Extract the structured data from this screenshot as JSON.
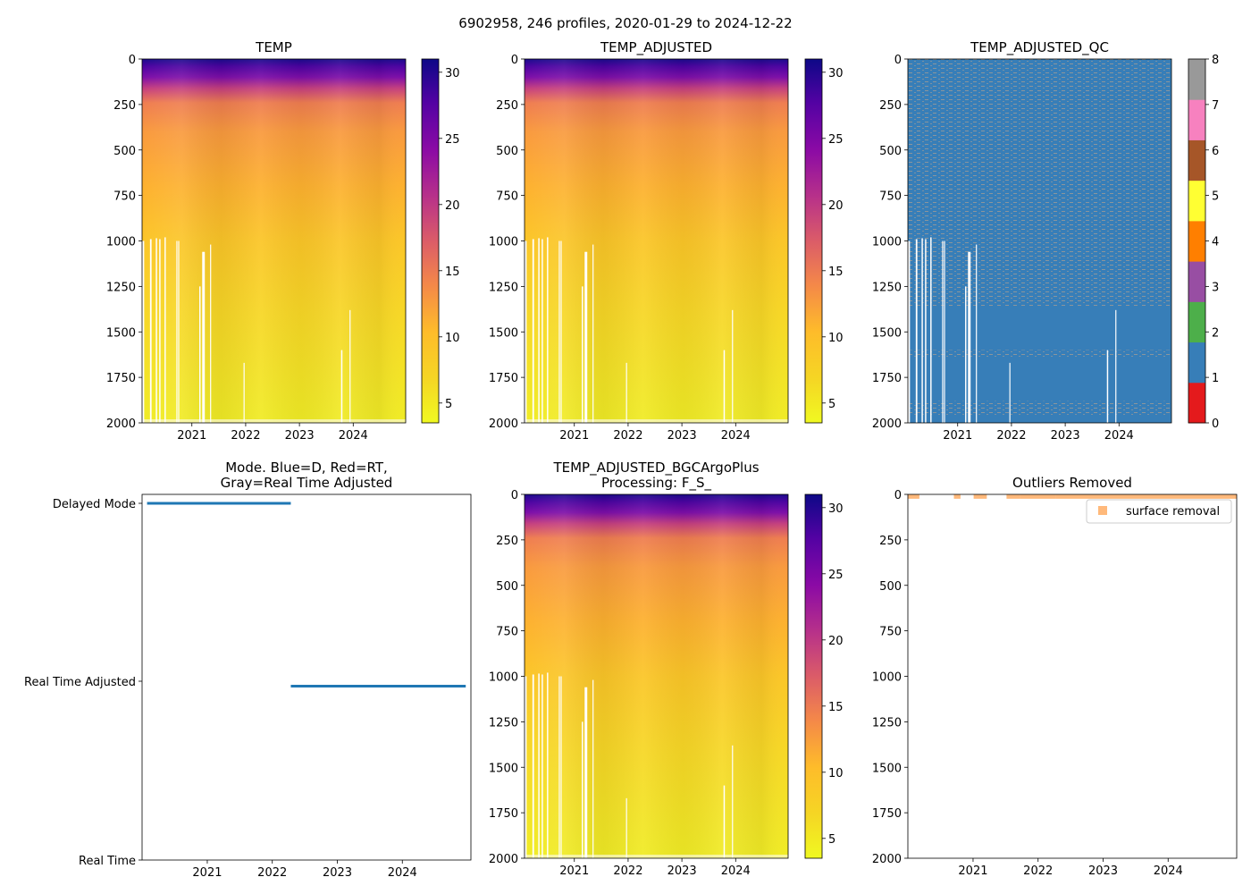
{
  "figure_title": "6902958, 246 profiles, 2020-01-29 to 2024-12-22",
  "colors": {
    "mode_blue": "#1f77b4",
    "outlier_orange": "#ff7f0e",
    "missing": "#ffffff",
    "qc_values": [
      "#e41a1c",
      "#377eb8",
      "#4daf4a",
      "#984ea3",
      "#ff7f00",
      "#ffff33",
      "#a65628",
      "#f781bf",
      "#999999"
    ]
  },
  "chart_data": [
    {
      "id": "temp",
      "type": "heatmap",
      "title": "TEMP",
      "x_ticks": [
        "2021",
        "2022",
        "2023",
        "2024"
      ],
      "y_ticks": [
        "0",
        "250",
        "500",
        "750",
        "1000",
        "1250",
        "1500",
        "1750",
        "2000"
      ],
      "ylim": [
        2000,
        0
      ],
      "colormap": "plasma_r",
      "colorbar": {
        "range": [
          3.5,
          31
        ],
        "ticks": [
          "5",
          "10",
          "15",
          "20",
          "25",
          "30"
        ]
      }
    },
    {
      "id": "temp_adjusted",
      "type": "heatmap",
      "title": "TEMP_ADJUSTED",
      "x_ticks": [
        "2021",
        "2022",
        "2023",
        "2024"
      ],
      "y_ticks": [
        "0",
        "250",
        "500",
        "750",
        "1000",
        "1250",
        "1500",
        "1750",
        "2000"
      ],
      "ylim": [
        2000,
        0
      ],
      "colormap": "plasma_r",
      "colorbar": {
        "range": [
          3.5,
          31
        ],
        "ticks": [
          "5",
          "10",
          "15",
          "20",
          "25",
          "30"
        ]
      }
    },
    {
      "id": "temp_adjusted_qc",
      "type": "heatmap",
      "title": "TEMP_ADJUSTED_QC",
      "x_ticks": [
        "2021",
        "2022",
        "2023",
        "2024"
      ],
      "y_ticks": [
        "0",
        "250",
        "500",
        "750",
        "1000",
        "1250",
        "1500",
        "1750",
        "2000"
      ],
      "ylim": [
        2000,
        0
      ],
      "dominant_flag": 1,
      "secondary_flag": 8,
      "colorbar": {
        "range": [
          0,
          8
        ],
        "ticks": [
          "0",
          "1",
          "2",
          "3",
          "4",
          "5",
          "6",
          "7",
          "8"
        ]
      }
    },
    {
      "id": "mode",
      "type": "scatter",
      "title_lines": [
        "Mode. Blue=D, Red=RT,",
        "Gray=Real Time Adjusted"
      ],
      "x_ticks": [
        "2021",
        "2022",
        "2023",
        "2024"
      ],
      "y_ticks": [
        "Delayed Mode",
        "Real Time Adjusted",
        "Real Time"
      ],
      "series": [
        {
          "name": "Delayed Mode",
          "x_range": [
            "2020-01-29",
            "2022-04-15"
          ]
        },
        {
          "name": "Real Time Adjusted",
          "x_range": [
            "2022-04-15",
            "2024-12-22"
          ]
        }
      ]
    },
    {
      "id": "temp_adjusted_bgcargoplus",
      "type": "heatmap",
      "title_lines": [
        "TEMP_ADJUSTED_BGCArgoPlus",
        "Processing: F_S_"
      ],
      "x_ticks": [
        "2021",
        "2022",
        "2023",
        "2024"
      ],
      "y_ticks": [
        "0",
        "250",
        "500",
        "750",
        "1000",
        "1250",
        "1500",
        "1750",
        "2000"
      ],
      "ylim": [
        2000,
        0
      ],
      "colormap": "plasma_r",
      "colorbar": {
        "range": [
          3.5,
          31
        ],
        "ticks": [
          "5",
          "10",
          "15",
          "20",
          "25",
          "30"
        ]
      }
    },
    {
      "id": "outliers",
      "type": "scatter",
      "title": "Outliers Removed",
      "x_ticks": [
        "2021",
        "2022",
        "2023",
        "2024"
      ],
      "y_ticks": [
        "0",
        "250",
        "500",
        "750",
        "1000",
        "1250",
        "1500",
        "1750",
        "2000"
      ],
      "ylim": [
        2000,
        0
      ],
      "series": [
        {
          "name": "surface removal",
          "depth_range": [
            0,
            20
          ]
        }
      ],
      "legend": {
        "label": "surface removal",
        "position": "top-right"
      }
    }
  ]
}
